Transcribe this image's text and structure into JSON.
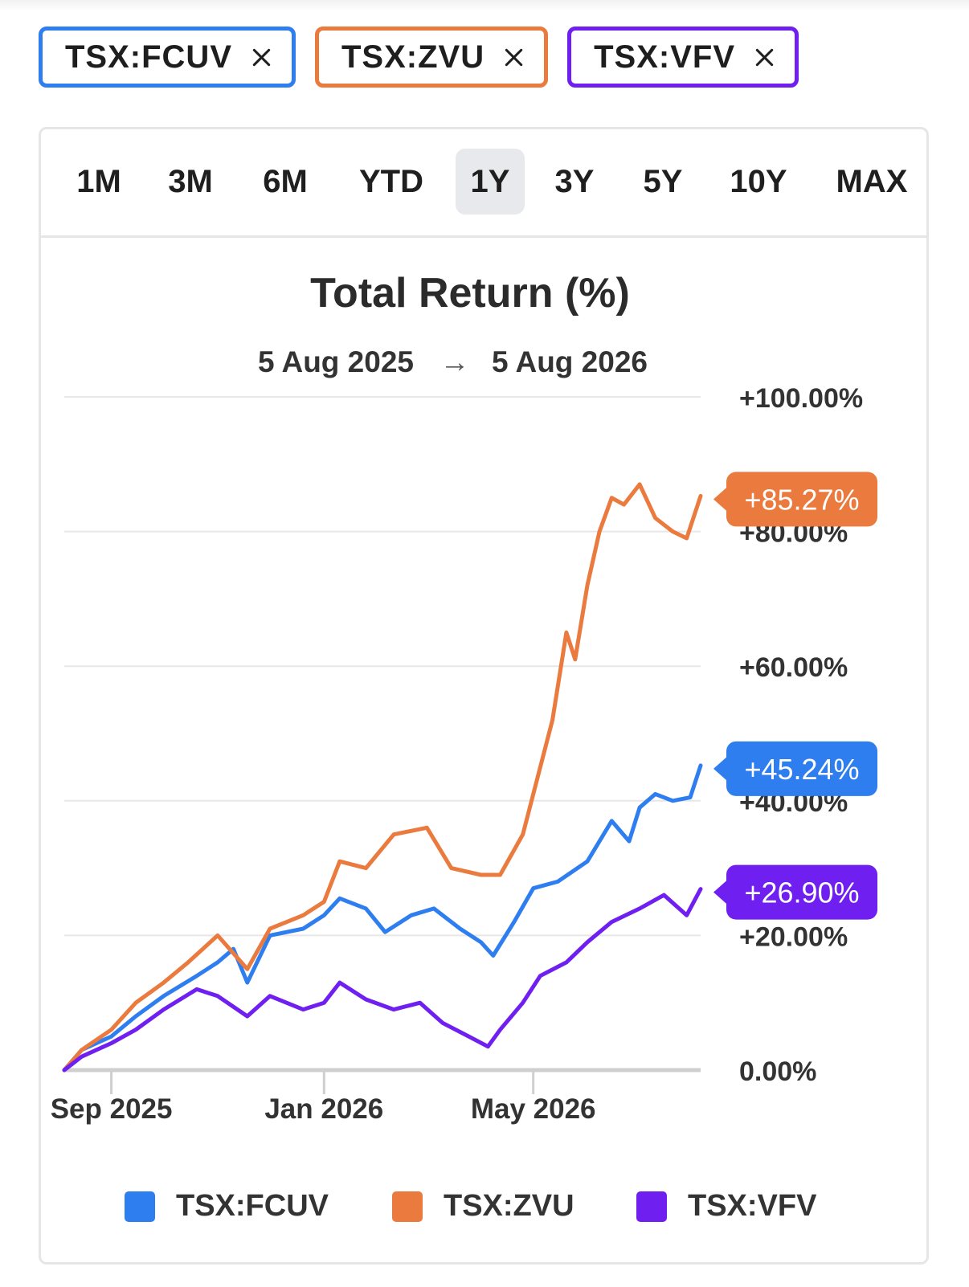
{
  "chips": [
    {
      "label": "TSX:FCUV",
      "color": "#2f7ef0"
    },
    {
      "label": "TSX:ZVU",
      "color": "#ea7a3e"
    },
    {
      "label": "TSX:VFV",
      "color": "#6f1ff0"
    }
  ],
  "tabs": [
    "1M",
    "3M",
    "6M",
    "YTD",
    "1Y",
    "3Y",
    "5Y",
    "10Y",
    "MAX"
  ],
  "active_tab": "1Y",
  "chart_data": {
    "type": "line",
    "title": "Total Return (%)",
    "date_range": {
      "start": "5 Aug 2025",
      "arrow": "→",
      "end": "5 Aug 2026"
    },
    "xlim": [
      "2025-08-05",
      "2026-08-05"
    ],
    "x_ticks": [
      {
        "date": "2025-09-01",
        "label": "Sep 2025"
      },
      {
        "date": "2026-01-01",
        "label": "Jan 2026"
      },
      {
        "date": "2026-05-01",
        "label": "May 2026"
      }
    ],
    "ylim": [
      0,
      100
    ],
    "y_ticks": [
      {
        "value": 0,
        "label": "0.00%"
      },
      {
        "value": 20,
        "label": "+20.00%"
      },
      {
        "value": 40,
        "label": "+40.00%"
      },
      {
        "value": 60,
        "label": "+60.00%"
      },
      {
        "value": 80,
        "label": "+80.00%"
      },
      {
        "value": 100,
        "label": "+100.00%"
      }
    ],
    "grid": true,
    "legend_position": "bottom",
    "series": [
      {
        "name": "TSX:FCUV",
        "color": "#2f7ef0",
        "end_label": "+45.24%",
        "points": [
          [
            "2025-08-05",
            0
          ],
          [
            "2025-08-15",
            3
          ],
          [
            "2025-09-01",
            5
          ],
          [
            "2025-09-15",
            8
          ],
          [
            "2025-10-01",
            11
          ],
          [
            "2025-10-20",
            14
          ],
          [
            "2025-11-01",
            16
          ],
          [
            "2025-11-10",
            18
          ],
          [
            "2025-11-18",
            13
          ],
          [
            "2025-12-01",
            20
          ],
          [
            "2025-12-20",
            21
          ],
          [
            "2026-01-01",
            23
          ],
          [
            "2026-01-10",
            25.5
          ],
          [
            "2026-01-25",
            24
          ],
          [
            "2026-02-05",
            20.5
          ],
          [
            "2026-02-20",
            23
          ],
          [
            "2026-03-05",
            24
          ],
          [
            "2026-03-20",
            21
          ],
          [
            "2026-04-01",
            19
          ],
          [
            "2026-04-08",
            17
          ],
          [
            "2026-04-20",
            22
          ],
          [
            "2026-05-01",
            27
          ],
          [
            "2026-05-15",
            28
          ],
          [
            "2026-06-01",
            31
          ],
          [
            "2026-06-15",
            37
          ],
          [
            "2026-06-25",
            34
          ],
          [
            "2026-07-01",
            39
          ],
          [
            "2026-07-10",
            41
          ],
          [
            "2026-07-20",
            40
          ],
          [
            "2026-07-30",
            40.5
          ],
          [
            "2026-08-05",
            45.24
          ]
        ]
      },
      {
        "name": "TSX:ZVU",
        "color": "#ea7a3e",
        "end_label": "+85.27%",
        "points": [
          [
            "2025-08-05",
            0
          ],
          [
            "2025-08-15",
            3
          ],
          [
            "2025-09-01",
            6
          ],
          [
            "2025-09-15",
            10
          ],
          [
            "2025-10-01",
            13
          ],
          [
            "2025-10-15",
            16
          ],
          [
            "2025-11-01",
            20
          ],
          [
            "2025-11-18",
            15
          ],
          [
            "2025-12-01",
            21
          ],
          [
            "2025-12-20",
            23
          ],
          [
            "2026-01-01",
            25
          ],
          [
            "2026-01-10",
            31
          ],
          [
            "2026-01-25",
            30
          ],
          [
            "2026-02-10",
            35
          ],
          [
            "2026-03-01",
            36
          ],
          [
            "2026-03-15",
            30
          ],
          [
            "2026-04-01",
            29
          ],
          [
            "2026-04-12",
            29
          ],
          [
            "2026-04-25",
            35
          ],
          [
            "2026-05-05",
            45
          ],
          [
            "2026-05-12",
            52
          ],
          [
            "2026-05-20",
            65
          ],
          [
            "2026-05-25",
            61
          ],
          [
            "2026-06-01",
            72
          ],
          [
            "2026-06-08",
            80
          ],
          [
            "2026-06-15",
            85
          ],
          [
            "2026-06-22",
            84
          ],
          [
            "2026-07-01",
            87
          ],
          [
            "2026-07-10",
            82
          ],
          [
            "2026-07-20",
            80
          ],
          [
            "2026-07-28",
            79
          ],
          [
            "2026-08-05",
            85.27
          ]
        ]
      },
      {
        "name": "TSX:VFV",
        "color": "#6f1ff0",
        "end_label": "+26.90%",
        "points": [
          [
            "2025-08-05",
            0
          ],
          [
            "2025-08-15",
            2
          ],
          [
            "2025-09-01",
            4
          ],
          [
            "2025-09-15",
            6
          ],
          [
            "2025-10-01",
            9
          ],
          [
            "2025-10-20",
            12
          ],
          [
            "2025-11-01",
            11
          ],
          [
            "2025-11-18",
            8
          ],
          [
            "2025-12-01",
            11
          ],
          [
            "2025-12-20",
            9
          ],
          [
            "2026-01-01",
            10
          ],
          [
            "2026-01-10",
            13
          ],
          [
            "2026-01-25",
            10.5
          ],
          [
            "2026-02-10",
            9
          ],
          [
            "2026-02-25",
            10
          ],
          [
            "2026-03-10",
            7
          ],
          [
            "2026-03-25",
            5
          ],
          [
            "2026-04-05",
            3.5
          ],
          [
            "2026-04-12",
            6
          ],
          [
            "2026-04-25",
            10
          ],
          [
            "2026-05-05",
            14
          ],
          [
            "2026-05-20",
            16
          ],
          [
            "2026-06-01",
            19
          ],
          [
            "2026-06-15",
            22
          ],
          [
            "2026-07-01",
            24
          ],
          [
            "2026-07-15",
            26
          ],
          [
            "2026-07-28",
            23
          ],
          [
            "2026-08-05",
            26.9
          ]
        ]
      }
    ]
  }
}
